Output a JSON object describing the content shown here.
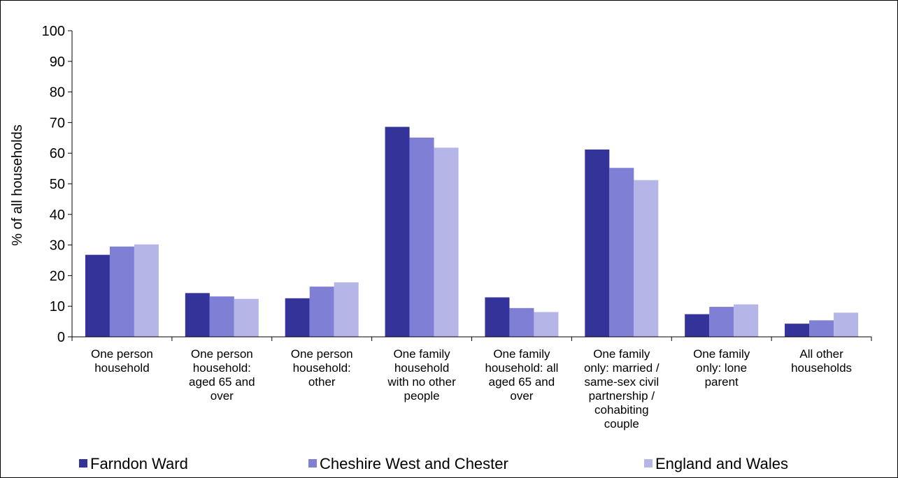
{
  "chart_data": {
    "type": "bar",
    "title": "",
    "xlabel": "",
    "ylabel": "% of all households",
    "ylim": [
      0,
      100
    ],
    "yticks": [
      0,
      10,
      20,
      30,
      40,
      50,
      60,
      70,
      80,
      90,
      100
    ],
    "grid": false,
    "legend_position": "bottom",
    "categories": [
      [
        "One person",
        "household"
      ],
      [
        "One person",
        "household:",
        "aged 65 and",
        "over"
      ],
      [
        "One person",
        "household:",
        "other"
      ],
      [
        "One family",
        "household",
        "with no other",
        "people"
      ],
      [
        "One family",
        "household: all",
        "aged 65 and",
        "over"
      ],
      [
        "One family",
        "only: married /",
        "same-sex civil",
        "partnership /",
        "cohabiting",
        "couple"
      ],
      [
        "One family",
        "only: lone",
        "parent"
      ],
      [
        "All other",
        "households"
      ]
    ],
    "series": [
      {
        "name": "Farndon Ward",
        "color": "#333399",
        "values": [
          26.8,
          14.3,
          12.6,
          68.6,
          12.9,
          61.2,
          7.4,
          4.3
        ]
      },
      {
        "name": "Cheshire West and Chester",
        "color": "#7f7fd5",
        "values": [
          29.5,
          13.2,
          16.4,
          65.1,
          9.4,
          55.2,
          9.8,
          5.4
        ]
      },
      {
        "name": "England and Wales",
        "color": "#b5b5e7",
        "values": [
          30.2,
          12.4,
          17.8,
          61.8,
          8.1,
          51.2,
          10.6,
          7.9
        ]
      }
    ]
  }
}
